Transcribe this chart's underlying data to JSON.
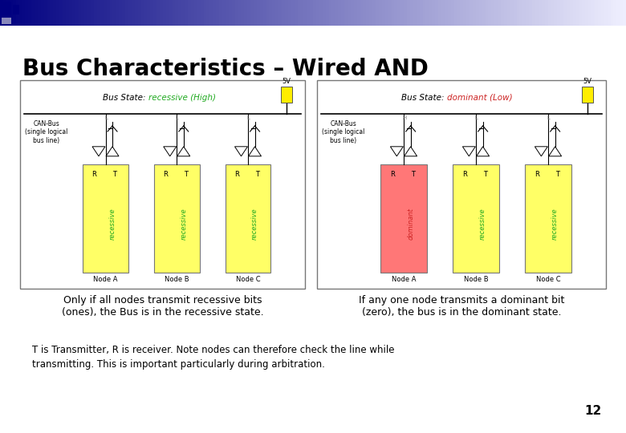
{
  "title": "Bus Characteristics – Wired AND",
  "title_fontsize": 20,
  "background_color": "#ffffff",
  "header_gradient_colors": [
    "#000080",
    "#1a1a8e",
    "#4040aa",
    "#7070c0",
    "#a0a0d8",
    "#c8c8e8",
    "#e8e8f5",
    "#f5f5ff"
  ],
  "left_caption": "Only if all nodes transmit recessive bits\n(ones), the Bus is in the recessive state.",
  "right_caption": "If any one node transmits a dominant bit\n(zero), the bus is in the dominant state.",
  "bottom_text_line1": "T is Transmitter, R is receiver. Note nodes can therefore check the line while",
  "bottom_text_line2": "transmitting. This is important particularly during arbitration.",
  "page_number": "12",
  "node_color_yellow": "#ffff66",
  "node_color_red": "#ff7777",
  "bus_state_recessive_color": "#22aa22",
  "bus_state_dominant_color": "#cc2222",
  "node_text_recessive_color": "#22aa22",
  "node_text_dominant_color": "#cc2222",
  "voltage_box_color": "#ffee00",
  "box_border_color": "#888888"
}
